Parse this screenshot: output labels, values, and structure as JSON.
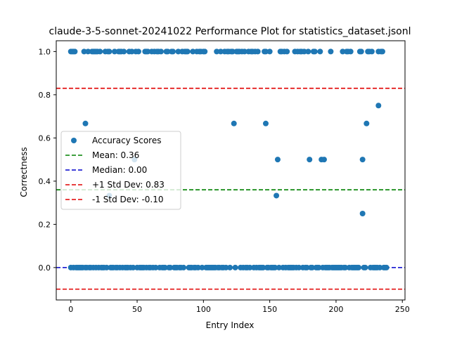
{
  "chart_data": {
    "type": "scatter",
    "title": "claude-3-5-sonnet-20241022 Performance Plot for statistics_dataset.jsonl",
    "xlabel": "Entry Index",
    "ylabel": "Correctness",
    "xlim": [
      -11,
      252
    ],
    "ylim": [
      -0.15,
      1.05
    ],
    "xticks": [
      0,
      50,
      100,
      150,
      200,
      250
    ],
    "yticks": [
      0.0,
      0.2,
      0.4,
      0.6,
      0.8,
      1.0
    ],
    "xtick_labels": [
      "0",
      "50",
      "100",
      "150",
      "200",
      "250"
    ],
    "ytick_labels": [
      "0.0",
      "0.2",
      "0.4",
      "0.6",
      "0.8",
      "1.0"
    ],
    "grid": false,
    "legend_position": "center-left",
    "series": [
      {
        "name": "Accuracy Scores",
        "color": "#1f77b4",
        "points": [
          [
            0,
            1
          ],
          [
            1,
            1
          ],
          [
            2,
            1
          ],
          [
            3,
            1
          ],
          [
            10,
            1
          ],
          [
            13,
            1
          ],
          [
            16,
            1
          ],
          [
            17,
            1
          ],
          [
            18,
            1
          ],
          [
            19,
            1
          ],
          [
            20,
            1
          ],
          [
            22,
            1
          ],
          [
            26,
            1
          ],
          [
            28,
            1
          ],
          [
            29,
            1
          ],
          [
            33,
            1
          ],
          [
            36,
            1
          ],
          [
            37,
            1
          ],
          [
            38,
            1
          ],
          [
            40,
            1
          ],
          [
            44,
            1
          ],
          [
            46,
            1
          ],
          [
            49,
            1
          ],
          [
            51,
            1
          ],
          [
            56,
            1
          ],
          [
            57,
            1
          ],
          [
            58,
            1
          ],
          [
            61,
            1
          ],
          [
            63,
            1
          ],
          [
            65,
            1
          ],
          [
            66,
            1
          ],
          [
            68,
            1
          ],
          [
            72,
            1
          ],
          [
            73,
            1
          ],
          [
            76,
            1
          ],
          [
            77,
            1
          ],
          [
            81,
            1
          ],
          [
            84,
            1
          ],
          [
            86,
            1
          ],
          [
            87,
            1
          ],
          [
            88,
            1
          ],
          [
            92,
            1
          ],
          [
            95,
            1
          ],
          [
            97,
            1
          ],
          [
            98,
            1
          ],
          [
            100,
            1
          ],
          [
            101,
            1
          ],
          [
            110,
            1
          ],
          [
            113,
            1
          ],
          [
            116,
            1
          ],
          [
            118,
            1
          ],
          [
            119,
            1
          ],
          [
            121,
            1
          ],
          [
            122,
            1
          ],
          [
            125,
            1
          ],
          [
            126,
            1
          ],
          [
            127,
            1
          ],
          [
            129,
            1
          ],
          [
            131,
            1
          ],
          [
            134,
            1
          ],
          [
            136,
            1
          ],
          [
            137,
            1
          ],
          [
            139,
            1
          ],
          [
            141,
            1
          ],
          [
            146,
            1
          ],
          [
            147,
            1
          ],
          [
            150,
            1
          ],
          [
            158,
            1
          ],
          [
            159,
            1
          ],
          [
            161,
            1
          ],
          [
            163,
            1
          ],
          [
            169,
            1
          ],
          [
            171,
            1
          ],
          [
            173,
            1
          ],
          [
            174,
            1
          ],
          [
            176,
            1
          ],
          [
            179,
            1
          ],
          [
            183,
            1
          ],
          [
            184,
            1
          ],
          [
            188,
            1
          ],
          [
            196,
            1
          ],
          [
            205,
            1
          ],
          [
            208,
            1
          ],
          [
            209,
            1
          ],
          [
            211,
            1
          ],
          [
            218,
            1
          ],
          [
            219,
            1
          ],
          [
            224,
            1
          ],
          [
            225,
            1
          ],
          [
            227,
            1
          ],
          [
            232,
            1
          ],
          [
            234,
            1
          ],
          [
            235,
            1
          ],
          [
            11,
            0.667
          ],
          [
            123,
            0.667
          ],
          [
            147,
            0.667
          ],
          [
            223,
            0.667
          ],
          [
            48,
            0.5
          ],
          [
            156,
            0.5
          ],
          [
            180,
            0.5
          ],
          [
            189,
            0.5
          ],
          [
            191,
            0.5
          ],
          [
            220,
            0.5
          ],
          [
            29,
            0.333
          ],
          [
            155,
            0.333
          ],
          [
            220,
            0.25
          ],
          [
            232,
            0.75
          ],
          [
            0,
            0
          ],
          [
            2,
            0
          ],
          [
            4,
            0
          ],
          [
            5,
            0
          ],
          [
            6,
            0
          ],
          [
            7,
            0
          ],
          [
            8,
            0
          ],
          [
            9,
            0
          ],
          [
            11,
            0
          ],
          [
            12,
            0
          ],
          [
            14,
            0
          ],
          [
            15,
            0
          ],
          [
            17,
            0
          ],
          [
            19,
            0
          ],
          [
            21,
            0
          ],
          [
            23,
            0
          ],
          [
            24,
            0
          ],
          [
            25,
            0
          ],
          [
            27,
            0
          ],
          [
            30,
            0
          ],
          [
            31,
            0
          ],
          [
            32,
            0
          ],
          [
            34,
            0
          ],
          [
            35,
            0
          ],
          [
            37,
            0
          ],
          [
            39,
            0
          ],
          [
            41,
            0
          ],
          [
            42,
            0
          ],
          [
            43,
            0
          ],
          [
            45,
            0
          ],
          [
            47,
            0
          ],
          [
            50,
            0
          ],
          [
            52,
            0
          ],
          [
            53,
            0
          ],
          [
            54,
            0
          ],
          [
            55,
            0
          ],
          [
            57,
            0
          ],
          [
            59,
            0
          ],
          [
            60,
            0
          ],
          [
            62,
            0
          ],
          [
            64,
            0
          ],
          [
            67,
            0
          ],
          [
            69,
            0
          ],
          [
            70,
            0
          ],
          [
            71,
            0
          ],
          [
            74,
            0
          ],
          [
            75,
            0
          ],
          [
            78,
            0
          ],
          [
            79,
            0
          ],
          [
            80,
            0
          ],
          [
            82,
            0
          ],
          [
            83,
            0
          ],
          [
            85,
            0
          ],
          [
            89,
            0
          ],
          [
            90,
            0
          ],
          [
            91,
            0
          ],
          [
            93,
            0
          ],
          [
            94,
            0
          ],
          [
            96,
            0
          ],
          [
            99,
            0
          ],
          [
            102,
            0
          ],
          [
            103,
            0
          ],
          [
            104,
            0
          ],
          [
            105,
            0
          ],
          [
            106,
            0
          ],
          [
            107,
            0
          ],
          [
            108,
            0
          ],
          [
            109,
            0
          ],
          [
            111,
            0
          ],
          [
            112,
            0
          ],
          [
            114,
            0
          ],
          [
            115,
            0
          ],
          [
            117,
            0
          ],
          [
            120,
            0
          ],
          [
            124,
            0
          ],
          [
            128,
            0
          ],
          [
            130,
            0
          ],
          [
            132,
            0
          ],
          [
            133,
            0
          ],
          [
            135,
            0
          ],
          [
            138,
            0
          ],
          [
            140,
            0
          ],
          [
            142,
            0
          ],
          [
            143,
            0
          ],
          [
            144,
            0
          ],
          [
            145,
            0
          ],
          [
            148,
            0
          ],
          [
            149,
            0
          ],
          [
            151,
            0
          ],
          [
            152,
            0
          ],
          [
            153,
            0
          ],
          [
            154,
            0
          ],
          [
            157,
            0
          ],
          [
            160,
            0
          ],
          [
            162,
            0
          ],
          [
            164,
            0
          ],
          [
            165,
            0
          ],
          [
            166,
            0
          ],
          [
            167,
            0
          ],
          [
            168,
            0
          ],
          [
            170,
            0
          ],
          [
            172,
            0
          ],
          [
            175,
            0
          ],
          [
            177,
            0
          ],
          [
            178,
            0
          ],
          [
            181,
            0
          ],
          [
            182,
            0
          ],
          [
            185,
            0
          ],
          [
            186,
            0
          ],
          [
            187,
            0
          ],
          [
            190,
            0
          ],
          [
            192,
            0
          ],
          [
            193,
            0
          ],
          [
            194,
            0
          ],
          [
            195,
            0
          ],
          [
            197,
            0
          ],
          [
            198,
            0
          ],
          [
            199,
            0
          ],
          [
            200,
            0
          ],
          [
            201,
            0
          ],
          [
            202,
            0
          ],
          [
            203,
            0
          ],
          [
            204,
            0
          ],
          [
            206,
            0
          ],
          [
            207,
            0
          ],
          [
            210,
            0
          ],
          [
            212,
            0
          ],
          [
            213,
            0
          ],
          [
            214,
            0
          ],
          [
            215,
            0
          ],
          [
            216,
            0
          ],
          [
            217,
            0
          ],
          [
            221,
            0
          ],
          [
            222,
            0
          ],
          [
            226,
            0
          ],
          [
            228,
            0
          ],
          [
            229,
            0
          ],
          [
            230,
            0
          ],
          [
            231,
            0
          ],
          [
            233,
            0
          ],
          [
            236,
            0
          ],
          [
            237,
            0
          ],
          [
            238,
            0
          ]
        ]
      }
    ],
    "reference_lines": [
      {
        "name": "Mean: 0.36",
        "value": 0.36,
        "color": "#008000",
        "style": "dashed"
      },
      {
        "name": "Median: 0.00",
        "value": 0.0,
        "color": "#0000cc",
        "style": "dashed"
      },
      {
        "name": "+1 Std Dev: 0.83",
        "value": 0.83,
        "color": "#e00000",
        "style": "dashed"
      },
      {
        "name": "-1 Std Dev: -0.10",
        "value": -0.1,
        "color": "#e00000",
        "style": "dashed"
      }
    ]
  }
}
